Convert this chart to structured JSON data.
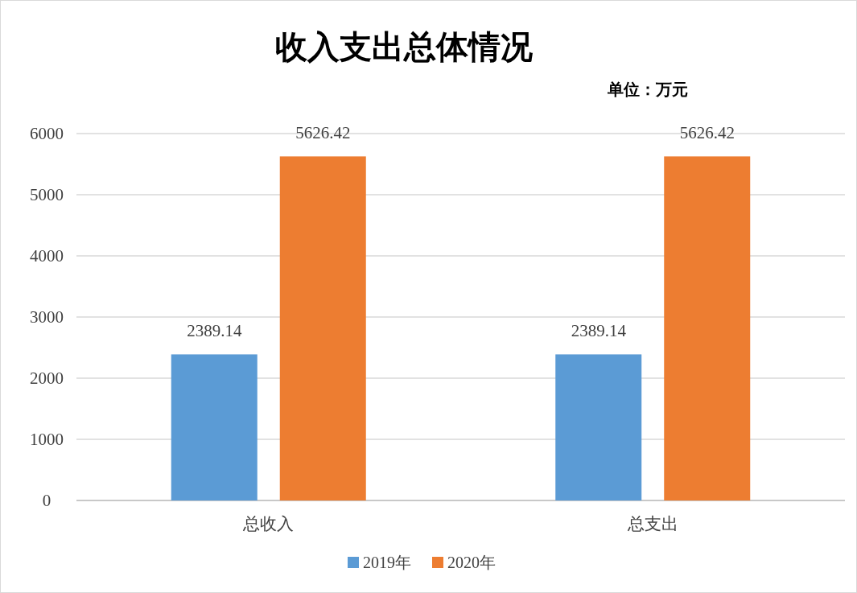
{
  "chart_data": {
    "type": "bar",
    "title": "收入支出总体情况",
    "annotations": [
      "单位：万元"
    ],
    "categories": [
      "总收入",
      "总支出"
    ],
    "series": [
      {
        "name": "2019年",
        "color": "#5b9bd5",
        "values": [
          2389.14,
          2389.14
        ]
      },
      {
        "name": "2020年",
        "color": "#ed7d31",
        "values": [
          5626.42,
          5626.42
        ]
      }
    ],
    "ylim": [
      0,
      6000
    ],
    "yticks": [
      0,
      1000,
      2000,
      3000,
      4000,
      5000,
      6000
    ],
    "grid": "y",
    "legend": "bottom",
    "data_labels": true
  }
}
